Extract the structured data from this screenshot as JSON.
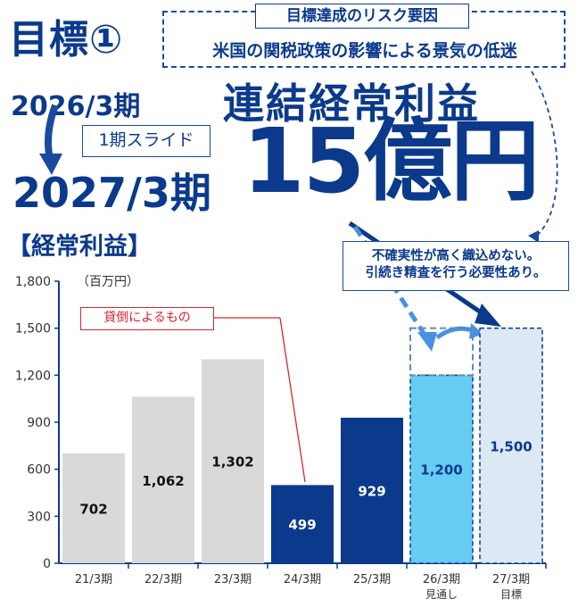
{
  "header": {
    "goal_title": "目標①",
    "risk_title": "目標達成のリスク要因",
    "risk_text": "米国の関税政策の影響による景気の低迷",
    "prev_period": "2026/3期",
    "slide_label": "1期スライド",
    "new_period": "2027/3期",
    "metric_title": "連結経常利益",
    "target_value": "15億円"
  },
  "chart_heading": "【経常利益】",
  "note": {
    "line1": "不確実性が高く織込めない。",
    "line2": "引続き精査を行う必要性あり。"
  },
  "callout": "貸倒によるもの",
  "colors": {
    "primary": "#0b3a8c",
    "gray_bar": "#d9d9d9",
    "forecast_bar": "#66ccf2",
    "target_bar": "#dde8f5",
    "callout_red": "#d8262e"
  },
  "chart_data": {
    "type": "bar",
    "unit": "（百万円）",
    "ylim": [
      0,
      1800
    ],
    "yticks": [
      "0",
      "300",
      "600",
      "900",
      "1,200",
      "1,500",
      "1,800"
    ],
    "categories": [
      "21/3期",
      "22/3期",
      "23/3期",
      "24/3期",
      "25/3期",
      "26/3期",
      "27/3期"
    ],
    "category_sublabels": [
      "",
      "",
      "",
      "",
      "",
      "見通し",
      "目標"
    ],
    "values": [
      702,
      1062,
      1302,
      499,
      929,
      1200,
      1500
    ],
    "value_labels": [
      "702",
      "1,062",
      "1,302",
      "499",
      "929",
      "1,200",
      "1,500"
    ],
    "bar_styles": [
      "gray",
      "gray",
      "gray",
      "navy",
      "navy",
      "forecast",
      "target"
    ],
    "dashed_outline_value": 1500,
    "grid": false
  }
}
